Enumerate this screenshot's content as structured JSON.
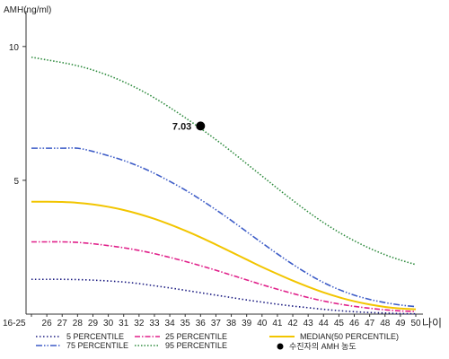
{
  "chart_data": {
    "type": "line",
    "ylabel": "AMH(ng/ml)",
    "xlabel": "나이",
    "ylim": [
      0,
      11
    ],
    "y_ticks": [
      5,
      10
    ],
    "x": [
      "16-25",
      "26",
      "27",
      "28",
      "29",
      "30",
      "31",
      "32",
      "33",
      "34",
      "35",
      "36",
      "37",
      "38",
      "39",
      "40",
      "41",
      "42",
      "43",
      "44",
      "45",
      "46",
      "47",
      "48",
      "49",
      "50"
    ],
    "series": [
      {
        "name": "5 PERCENTILE",
        "color": "#1a1a80",
        "dash": "1.5,2.5",
        "values": [
          1.3,
          1.3,
          1.3,
          1.29,
          1.27,
          1.24,
          1.2,
          1.14,
          1.06,
          0.98,
          0.89,
          0.8,
          0.71,
          0.62,
          0.53,
          0.45,
          0.37,
          0.3,
          0.24,
          0.18,
          0.13,
          0.09,
          0.06,
          0.04,
          0.02,
          0.01
        ]
      },
      {
        "name": "25 PERCENTILE",
        "color": "#e0208a",
        "dash": "6,2,1.5,2",
        "values": [
          2.7,
          2.7,
          2.7,
          2.68,
          2.63,
          2.56,
          2.48,
          2.38,
          2.26,
          2.12,
          1.97,
          1.81,
          1.64,
          1.46,
          1.28,
          1.1,
          0.93,
          0.77,
          0.62,
          0.49,
          0.38,
          0.29,
          0.22,
          0.16,
          0.12,
          0.1
        ]
      },
      {
        "name": "MEDIAN(50 PERCENTILE)",
        "color": "#f2c500",
        "dash": "",
        "values": [
          4.2,
          4.2,
          4.19,
          4.16,
          4.1,
          4.01,
          3.89,
          3.74,
          3.56,
          3.35,
          3.12,
          2.87,
          2.6,
          2.32,
          2.04,
          1.76,
          1.5,
          1.25,
          1.02,
          0.81,
          0.63,
          0.48,
          0.36,
          0.27,
          0.21,
          0.18
        ]
      },
      {
        "name": "75 PERCENTILE",
        "color": "#3d5cc7",
        "dash": "7,2,1.5,2,1.5,2",
        "values": [
          6.2,
          6.2,
          6.2,
          6.2,
          6.08,
          5.92,
          5.74,
          5.52,
          5.26,
          4.96,
          4.64,
          4.28,
          3.9,
          3.5,
          3.08,
          2.66,
          2.25,
          1.86,
          1.5,
          1.18,
          0.92,
          0.71,
          0.55,
          0.43,
          0.34,
          0.28
        ]
      },
      {
        "name": "95 PERCENTILE",
        "color": "#2e8b3e",
        "dash": "1.5,2",
        "values": [
          9.6,
          9.5,
          9.4,
          9.28,
          9.12,
          8.92,
          8.68,
          8.4,
          8.08,
          7.72,
          7.34,
          6.94,
          6.52,
          6.08,
          5.62,
          5.16,
          4.7,
          4.25,
          3.82,
          3.42,
          3.06,
          2.74,
          2.46,
          2.22,
          2.02,
          1.85
        ]
      }
    ],
    "marker": {
      "label": "수진자의 AMH 농도",
      "x": "36",
      "y": 7.03,
      "value_text": "7.03"
    },
    "grid": false,
    "legend_position": "bottom"
  }
}
